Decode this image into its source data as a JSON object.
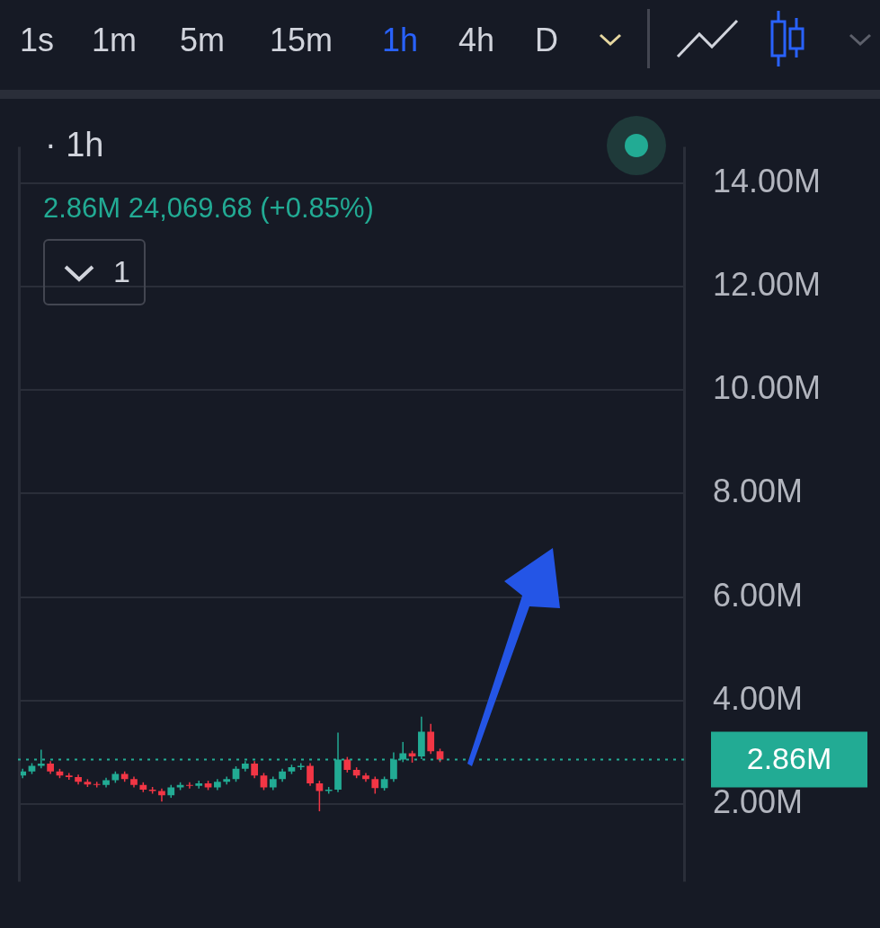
{
  "chart_data": {
    "type": "candlestick",
    "title": "· 1h",
    "subtitle": "2.86M  24,069.68 (+0.85%)",
    "annotations": [
      "1s",
      "1m",
      "5m",
      "15m",
      "1h",
      "4h",
      "D",
      "1"
    ],
    "categories": [
      null,
      null,
      null,
      null,
      null,
      null,
      null,
      null,
      null,
      null,
      null,
      null,
      null,
      null,
      null,
      null,
      null,
      null,
      null,
      null,
      null,
      null,
      null,
      null,
      null,
      null,
      null,
      null,
      null,
      null,
      null,
      null,
      null,
      null,
      null,
      null,
      null,
      null,
      null,
      null,
      null,
      null,
      null,
      null,
      null,
      null,
      null,
      null,
      null,
      null,
      null,
      null,
      null,
      null,
      null,
      null,
      null,
      null,
      null,
      null,
      null,
      null,
      null,
      null,
      null,
      null,
      null,
      null,
      null,
      null,
      null,
      null
    ],
    "ohlc": [
      [
        2.55,
        2.68,
        2.5,
        2.63
      ],
      [
        2.63,
        2.79,
        2.58,
        2.74
      ],
      [
        2.74,
        3.05,
        2.69,
        2.78
      ],
      [
        2.78,
        2.83,
        2.58,
        2.63
      ],
      [
        2.63,
        2.68,
        2.5,
        2.55
      ],
      [
        2.55,
        2.6,
        2.47,
        2.52
      ],
      [
        2.52,
        2.57,
        2.38,
        2.43
      ],
      [
        2.43,
        2.48,
        2.33,
        2.38
      ],
      [
        2.38,
        2.43,
        2.32,
        2.37
      ],
      [
        2.37,
        2.51,
        2.32,
        2.46
      ],
      [
        2.46,
        2.63,
        2.41,
        2.58
      ],
      [
        2.58,
        2.63,
        2.43,
        2.48
      ],
      [
        2.48,
        2.53,
        2.32,
        2.37
      ],
      [
        2.37,
        2.42,
        2.23,
        2.28
      ],
      [
        2.28,
        2.33,
        2.2,
        2.25
      ],
      [
        2.25,
        2.3,
        2.05,
        2.17
      ],
      [
        2.17,
        2.37,
        2.12,
        2.32
      ],
      [
        2.32,
        2.42,
        2.27,
        2.37
      ],
      [
        2.37,
        2.42,
        2.3,
        2.35
      ],
      [
        2.35,
        2.45,
        2.3,
        2.4
      ],
      [
        2.4,
        2.45,
        2.27,
        2.32
      ],
      [
        2.32,
        2.48,
        2.27,
        2.43
      ],
      [
        2.43,
        2.53,
        2.38,
        2.48
      ],
      [
        2.48,
        2.73,
        2.43,
        2.68
      ],
      [
        2.68,
        2.83,
        2.63,
        2.78
      ],
      [
        2.78,
        2.83,
        2.5,
        2.55
      ],
      [
        2.55,
        2.6,
        2.27,
        2.32
      ],
      [
        2.32,
        2.53,
        2.27,
        2.48
      ],
      [
        2.48,
        2.68,
        2.43,
        2.63
      ],
      [
        2.63,
        2.76,
        2.58,
        2.71
      ],
      [
        2.71,
        2.79,
        2.66,
        2.74
      ],
      [
        2.74,
        2.79,
        2.35,
        2.4
      ],
      [
        2.4,
        2.45,
        1.86,
        2.25
      ],
      [
        2.25,
        2.33,
        2.2,
        2.28
      ],
      [
        2.28,
        3.38,
        2.23,
        2.86
      ],
      [
        2.86,
        2.91,
        2.61,
        2.66
      ],
      [
        2.66,
        2.71,
        2.5,
        2.55
      ],
      [
        2.55,
        2.6,
        2.43,
        2.48
      ],
      [
        2.48,
        2.53,
        2.2,
        2.31
      ],
      [
        2.31,
        2.53,
        2.26,
        2.48
      ],
      [
        2.48,
        3.0,
        2.43,
        2.86
      ],
      [
        2.86,
        3.2,
        2.81,
        2.98
      ],
      [
        2.98,
        3.03,
        2.8,
        2.92
      ],
      [
        2.92,
        3.69,
        2.87,
        3.4
      ],
      [
        3.4,
        3.55,
        2.97,
        3.02
      ],
      [
        3.02,
        3.07,
        2.81,
        2.86
      ],
      null,
      null,
      null,
      null,
      null,
      null,
      null,
      null,
      null,
      null,
      null,
      null,
      null,
      null,
      null,
      null,
      null,
      null,
      null,
      null,
      null,
      null,
      null,
      null,
      null,
      null
    ],
    "ylim": [
      0.5,
      14.7
    ],
    "yticks": [
      {
        "value": 2,
        "label": "2.00M"
      },
      {
        "value": 4,
        "label": "4.00M"
      },
      {
        "value": 6,
        "label": "6.00M"
      },
      {
        "value": 8,
        "label": "8.00M"
      },
      {
        "value": 10,
        "label": "10.00M"
      },
      {
        "value": 12,
        "label": "12.00M"
      },
      {
        "value": 14,
        "label": "14.00M"
      }
    ],
    "ref_lines": [
      {
        "axis": "y",
        "value": 2.86,
        "label": "2.86M",
        "color": "#22ab94",
        "line_style": "dotted"
      }
    ],
    "grid": "y",
    "tick_labels": "y",
    "legend": false
  }
}
